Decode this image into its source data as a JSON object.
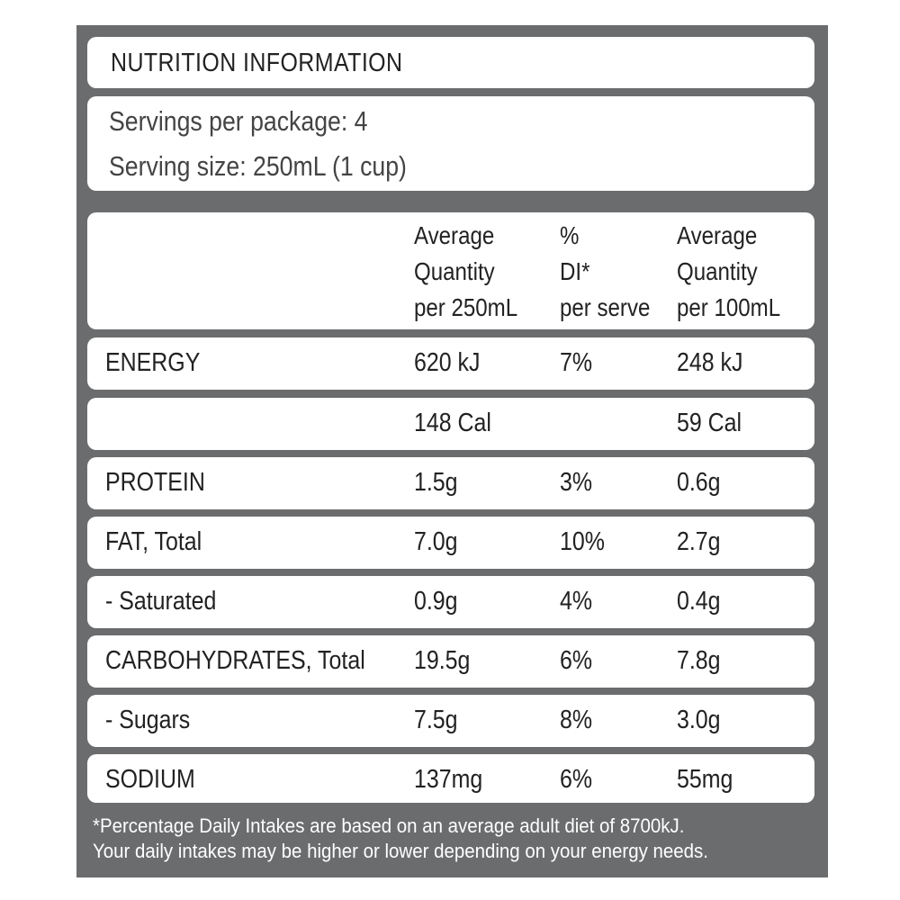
{
  "title": "NUTRITION INFORMATION",
  "servings_per_package": "Servings per package: 4",
  "serving_size": "Serving size: 250mL (1 cup)",
  "header": {
    "col1": [
      "Average",
      "Quantity",
      "per 250mL"
    ],
    "col2": [
      "%",
      "DI*",
      "per serve"
    ],
    "col3": [
      "Average",
      "Quantity",
      "per 100mL"
    ]
  },
  "rows": [
    {
      "label": "ENERGY",
      "per_serve": "620 kJ",
      "di": "7%",
      "per_100": "248 kJ"
    },
    {
      "label": "",
      "per_serve": "148 Cal",
      "di": "",
      "per_100": "59 Cal"
    },
    {
      "label": "PROTEIN",
      "per_serve": "1.5g",
      "di": "3%",
      "per_100": "0.6g"
    },
    {
      "label": "FAT, Total",
      "per_serve": "7.0g",
      "di": "10%",
      "per_100": "2.7g"
    },
    {
      "label": " - Saturated",
      "per_serve": "0.9g",
      "di": "4%",
      "per_100": "0.4g"
    },
    {
      "label": "CARBOHYDRATES, Total",
      "per_serve": "19.5g",
      "di": "6%",
      "per_100": "7.8g"
    },
    {
      "label": " - Sugars",
      "per_serve": "7.5g",
      "di": "8%",
      "per_100": "3.0g"
    },
    {
      "label": "SODIUM",
      "per_serve": "137mg",
      "di": "6%",
      "per_100": "55mg"
    }
  ],
  "footnote": [
    "*Percentage Daily Intakes are based on an average adult diet of 8700kJ.",
    "Your daily intakes may be higher or lower depending on your energy needs."
  ],
  "colors": {
    "frame": "#6b6c6e",
    "panel": "#ffffff",
    "text": "#222222"
  }
}
